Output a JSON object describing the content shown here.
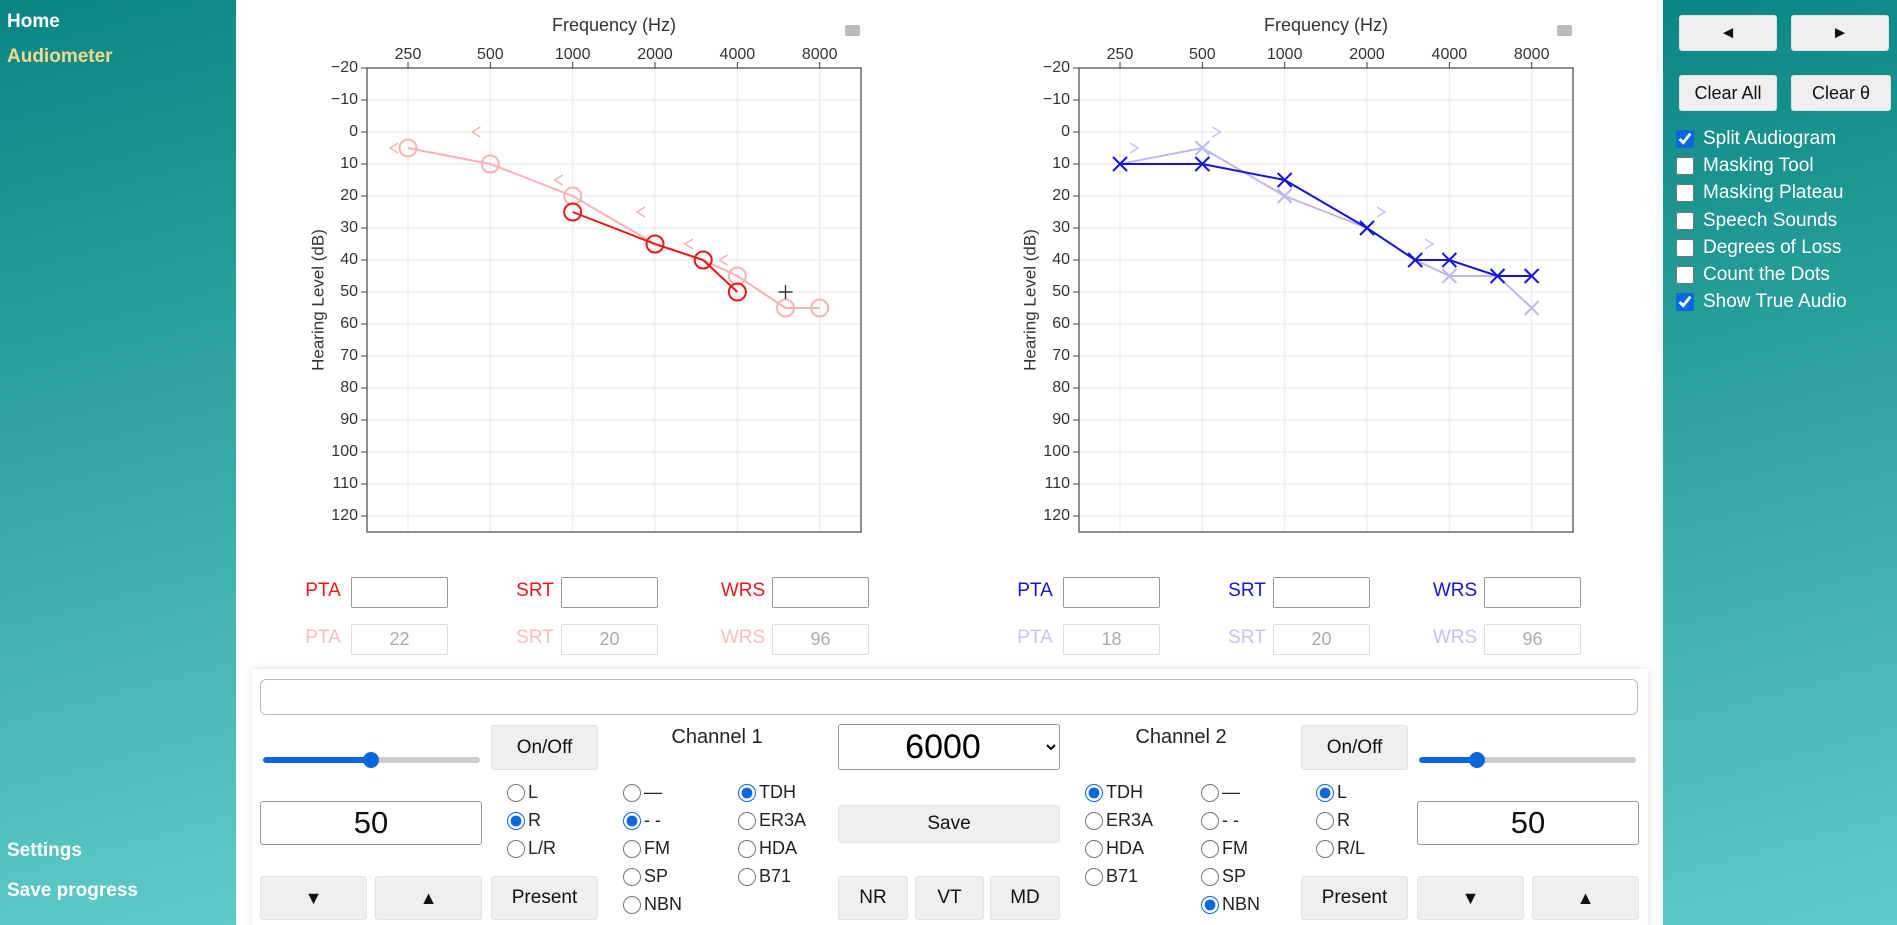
{
  "sidebar": {
    "nav": [
      "Home",
      "Audiometer"
    ],
    "footer": [
      "Settings",
      "Save progress"
    ]
  },
  "chart_data": [
    {
      "type": "line",
      "x_label": "Frequency (Hz)",
      "y_label": "Hearing Level (dB)",
      "x_scale": "log",
      "xlim": [
        177,
        11328
      ],
      "xticks": [
        250,
        500,
        1000,
        2000,
        4000,
        8000
      ],
      "ylim": [
        -20,
        125
      ],
      "y_reversed": true,
      "yticks": [
        {
          "value": -20,
          "label": "−20"
        },
        {
          "value": -10,
          "label": "−10"
        },
        0,
        10,
        20,
        30,
        40,
        50,
        60,
        70,
        80,
        90,
        100,
        110,
        120
      ],
      "grid": true,
      "series": [
        {
          "marker": "circle",
          "line": true,
          "color": "#f7b3b3",
          "x": [
            250,
            500,
            1000,
            2000,
            3000,
            4000,
            6000,
            8000
          ],
          "values": [
            5,
            10,
            20,
            35,
            40,
            45,
            55,
            55
          ]
        },
        {
          "marker": "<",
          "line": false,
          "color": "#f5b0b0",
          "x": [
            250,
            500,
            1000,
            2000,
            3000,
            4000
          ],
          "values": [
            5,
            0,
            15,
            25,
            35,
            40
          ]
        },
        {
          "marker": "circle",
          "line": true,
          "color": "#e8191b",
          "x": [
            1000,
            2000,
            3000,
            4000
          ],
          "values": [
            25,
            35,
            40,
            50
          ]
        }
      ],
      "cursor": {
        "x": 6000,
        "y": 50
      },
      "scores": {
        "labels": [
          "PTA",
          "SRT",
          "WRS"
        ],
        "true_values": [
          22,
          20,
          96
        ]
      }
    },
    {
      "type": "line",
      "x_label": "Frequency (Hz)",
      "y_label": "Hearing Level (dB)",
      "x_scale": "log",
      "xlim": [
        177,
        11328
      ],
      "xticks": [
        250,
        500,
        1000,
        2000,
        4000,
        8000
      ],
      "ylim": [
        -20,
        125
      ],
      "y_reversed": true,
      "yticks": [
        {
          "value": -20,
          "label": "−20"
        },
        {
          "value": -10,
          "label": "−10"
        },
        0,
        10,
        20,
        30,
        40,
        50,
        60,
        70,
        80,
        90,
        100,
        110,
        120
      ],
      "grid": true,
      "series": [
        {
          "marker": "x",
          "line": true,
          "color": "#b9b9f0",
          "x": [
            250,
            500,
            1000,
            2000,
            3000,
            4000,
            6000,
            8000
          ],
          "values": [
            10,
            5,
            20,
            30,
            40,
            45,
            45,
            55
          ]
        },
        {
          "marker": ">",
          "line": false,
          "color": "#c3c3f2",
          "x": [
            250,
            500,
            2000,
            3000
          ],
          "values": [
            5,
            0,
            25,
            35
          ]
        },
        {
          "marker": "x",
          "line": true,
          "color": "#1515d6",
          "x": [
            250,
            500,
            1000,
            2000,
            3000,
            4000,
            6000,
            8000
          ],
          "values": [
            10,
            10,
            15,
            30,
            40,
            40,
            45,
            45
          ]
        }
      ],
      "scores": {
        "labels": [
          "PTA",
          "SRT",
          "WRS"
        ],
        "true_values": [
          18,
          20,
          96
        ]
      }
    }
  ],
  "controls": {
    "frequency": 6000,
    "save": "Save",
    "buttons": [
      "NR",
      "VT",
      "MD"
    ],
    "channels": [
      {
        "title": "Channel 1",
        "onoff": "On/Off",
        "level": 50,
        "present": "Present",
        "down": "▼",
        "up": "▲",
        "ear": {
          "options": [
            "L",
            "R",
            "L/R"
          ],
          "selected": 1
        },
        "stim": {
          "options": [
            "—",
            "- -",
            "FM",
            "SP",
            "NBN"
          ],
          "selected": 1
        },
        "transducer": {
          "options": [
            "TDH",
            "ER3A",
            "HDA",
            "B71"
          ],
          "selected": 0
        }
      },
      {
        "title": "Channel 2",
        "onoff": "On/Off",
        "level": 50,
        "present": "Present",
        "down": "▼",
        "up": "▲",
        "ear": {
          "options": [
            "L",
            "R",
            "R/L"
          ],
          "selected": 0
        },
        "stim": {
          "options": [
            "—",
            "- -",
            "FM",
            "SP",
            "NBN"
          ],
          "selected": 4
        },
        "transducer": {
          "options": [
            "TDH",
            "ER3A",
            "HDA",
            "B71"
          ],
          "selected": 0
        }
      }
    ]
  },
  "toolbar": {
    "arrows": [
      "◄",
      "►"
    ],
    "clear": [
      "Clear All",
      "Clear θ"
    ],
    "options": [
      {
        "label": "Split Audiogram",
        "checked": true
      },
      {
        "label": "Masking Tool",
        "checked": false
      },
      {
        "label": "Masking Plateau",
        "checked": false
      },
      {
        "label": "Speech Sounds",
        "checked": false
      },
      {
        "label": "Degrees of Loss",
        "checked": false
      },
      {
        "label": "Count the Dots",
        "checked": false
      },
      {
        "label": "Show True Audio",
        "checked": true
      }
    ]
  }
}
